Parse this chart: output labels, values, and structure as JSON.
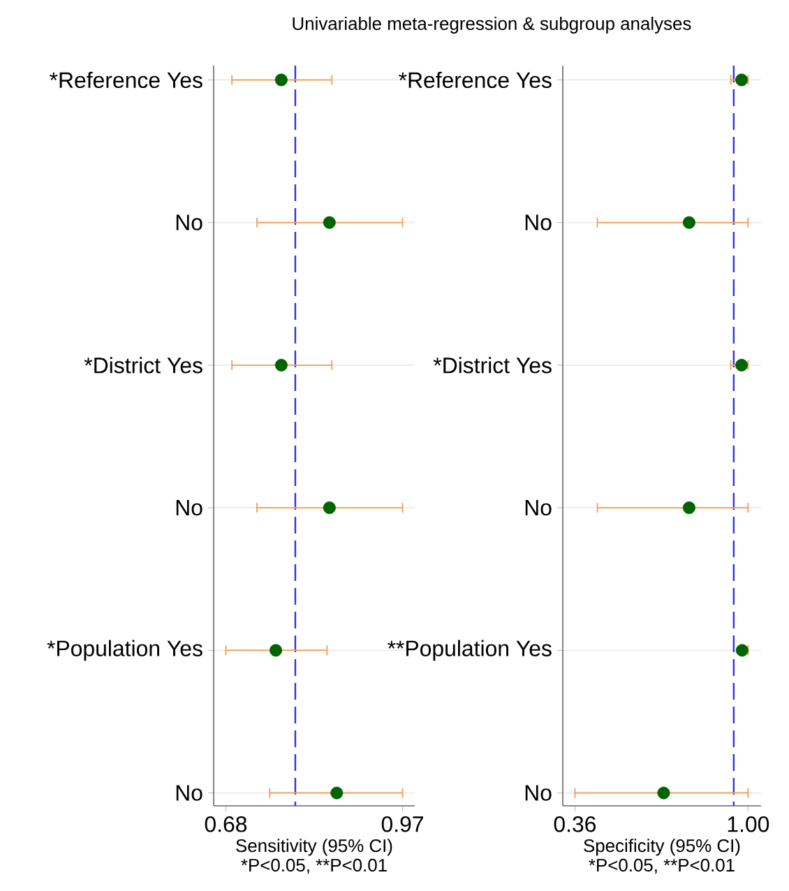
{
  "chart_data": [
    {
      "type": "scatter",
      "orientation": "horizontal",
      "title": "Univariable meta-regression & subgroup analyses",
      "categories": [
        "*Reference Yes",
        "No",
        "*District Yes",
        "No",
        "*Population Yes",
        "No"
      ],
      "values": [
        0.771,
        0.85,
        0.771,
        0.85,
        0.762,
        0.862
      ],
      "errors": [
        [
          0.69,
          0.854
        ],
        [
          0.731,
          0.97
        ],
        [
          0.69,
          0.854
        ],
        [
          0.731,
          0.97
        ],
        [
          0.68,
          0.846
        ],
        [
          0.752,
          0.97
        ]
      ],
      "color": "#006400",
      "marker": "circle",
      "grid": "y",
      "xlim": [
        0.66,
        0.99
      ],
      "xticks": [
        0.68,
        0.97
      ],
      "xlabel": "Sensitivity (95% CI)",
      "annotations": [
        "*P<0.05, **P<0.01"
      ],
      "ref_lines": [
        {
          "axis": "x",
          "value": 0.794,
          "color": "#3333dd",
          "line_style": "dashed"
        }
      ]
    },
    {
      "type": "scatter",
      "orientation": "horizontal",
      "categories": [
        "*Reference Yes",
        "No",
        "*District Yes",
        "No",
        "**Population Yes",
        "No"
      ],
      "values": [
        0.976,
        0.782,
        0.976,
        0.782,
        0.978,
        0.688
      ],
      "errors": [
        [
          0.936,
          1.0
        ],
        [
          0.443,
          1.0
        ],
        [
          0.936,
          1.0
        ],
        [
          0.443,
          1.0
        ],
        [
          0.97,
          1.0
        ],
        [
          0.36,
          1.0
        ]
      ],
      "color": "#006400",
      "marker": "circle",
      "grid": "y",
      "xlim": [
        0.315,
        1.048
      ],
      "xticks": [
        {
          "value": 0.36,
          "label": "0.36"
        },
        {
          "value": 1,
          "label": "1.00"
        }
      ],
      "xlabel": "Specificity (95% CI)",
      "annotations": [
        "*P<0.05, **P<0.01"
      ],
      "ref_lines": [
        {
          "axis": "x",
          "value": 0.947,
          "color": "#3333dd",
          "line_style": "dashed"
        }
      ]
    }
  ]
}
